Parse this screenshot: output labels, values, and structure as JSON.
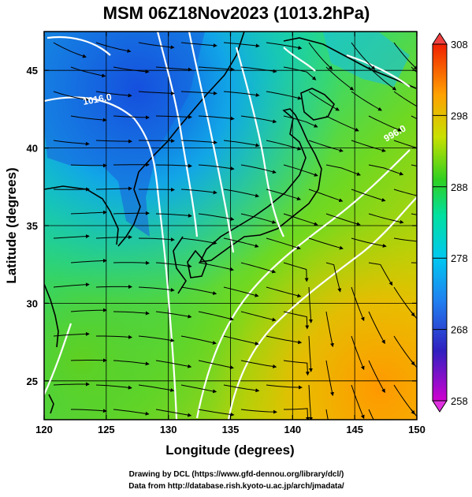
{
  "title": "MSM 06Z18Nov2023 (1013.2hPa)",
  "x_axis": {
    "label": "Longitude (degrees)",
    "ticks": [
      "120",
      "125",
      "130",
      "135",
      "140",
      "145",
      "150"
    ],
    "range": [
      120,
      150
    ]
  },
  "y_axis": {
    "label": "Latitude  (degrees)",
    "ticks": [
      "25",
      "30",
      "35",
      "40",
      "45"
    ],
    "range": [
      22.5,
      47.5
    ]
  },
  "colorbar": {
    "ticks": [
      "258",
      "268",
      "278",
      "288",
      "298",
      "308"
    ],
    "range": [
      258,
      308
    ],
    "colors": [
      "#d000d0",
      "#2020c8",
      "#00a0f0",
      "#00e0c0",
      "#30d020",
      "#d0e000",
      "#ffa000",
      "#f03000"
    ]
  },
  "isobar_labels": [
    "1016.0",
    "996.0"
  ],
  "credits": {
    "line1": "Drawing by DCL (https://www.gfd-dennou.org/library/dcl/)",
    "line2": "Data from http://database.rish.kyoto-u.ac.jp/arch/jmadata/"
  }
}
